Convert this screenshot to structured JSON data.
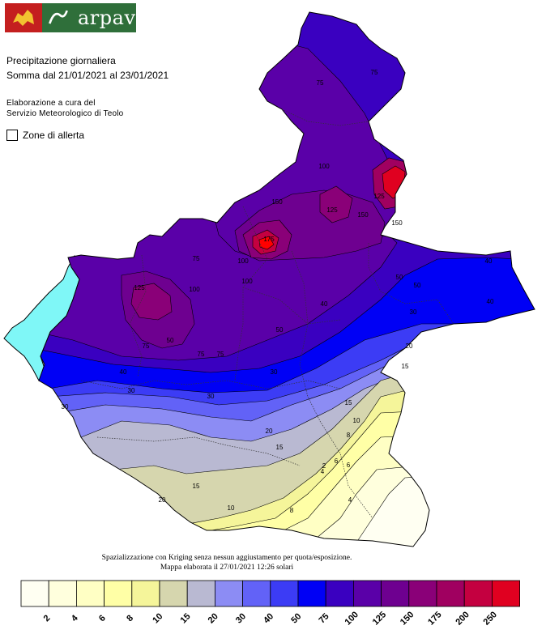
{
  "header": {
    "logo_text": "arpav",
    "title_line1": "Precipitazione giornaliera",
    "title_line2": "Somma dal 21/01/2021 al 23/01/2021",
    "credit_line1": "Elaborazione a cura del",
    "credit_line2": "Servizio Meteorologico di Teolo",
    "zone_toggle_label": "Zone di allerta"
  },
  "footer": {
    "method_note": "Spazializzazione con Kriging senza nessun aggiustamento per quota/esposizione.",
    "timestamp_note": "Mappa elaborata il 27/01/2021 12:26 solari"
  },
  "colors": {
    "lake": "#7ff7f7",
    "class_colors": [
      "#fffff2",
      "#ffffdd",
      "#ffffc4",
      "#ffffa6",
      "#f5f59a",
      "#d6d6ae",
      "#b9b9d2",
      "#8c8cf4",
      "#6262f7",
      "#3c3cf5",
      "#0000f5",
      "#3a00c0",
      "#5a00a8",
      "#6e0090",
      "#8a0078",
      "#a00060",
      "#c40040",
      "#e00020",
      "#ff0000"
    ]
  },
  "scale": {
    "labels": [
      "2",
      "4",
      "6",
      "8",
      "10",
      "15",
      "20",
      "30",
      "40",
      "50",
      "75",
      "100",
      "125",
      "150",
      "175",
      "200",
      "250"
    ]
  },
  "contour_labels": [
    {
      "text": "75"
    },
    {
      "text": "75"
    },
    {
      "text": "100"
    },
    {
      "text": "150"
    },
    {
      "text": "125"
    },
    {
      "text": "150"
    },
    {
      "text": "175"
    },
    {
      "text": "125"
    },
    {
      "text": "150"
    },
    {
      "text": "100"
    },
    {
      "text": "75"
    },
    {
      "text": "75"
    },
    {
      "text": "125"
    },
    {
      "text": "100"
    },
    {
      "text": "75"
    },
    {
      "text": "100"
    },
    {
      "text": "50"
    },
    {
      "text": "40"
    },
    {
      "text": "50"
    },
    {
      "text": "40"
    },
    {
      "text": "30"
    },
    {
      "text": "40"
    },
    {
      "text": "30"
    },
    {
      "text": "20"
    },
    {
      "text": "15"
    },
    {
      "text": "30"
    },
    {
      "text": "20"
    },
    {
      "text": "15"
    },
    {
      "text": "15"
    },
    {
      "text": "10"
    },
    {
      "text": "8"
    },
    {
      "text": "6"
    },
    {
      "text": "4"
    },
    {
      "text": "10"
    },
    {
      "text": "8"
    },
    {
      "text": "6"
    },
    {
      "text": "4"
    },
    {
      "text": "2"
    },
    {
      "text": "15"
    },
    {
      "text": "20"
    },
    {
      "text": "30"
    },
    {
      "text": "50"
    },
    {
      "text": "75"
    },
    {
      "text": "40"
    },
    {
      "text": "50"
    },
    {
      "text": "30"
    }
  ]
}
